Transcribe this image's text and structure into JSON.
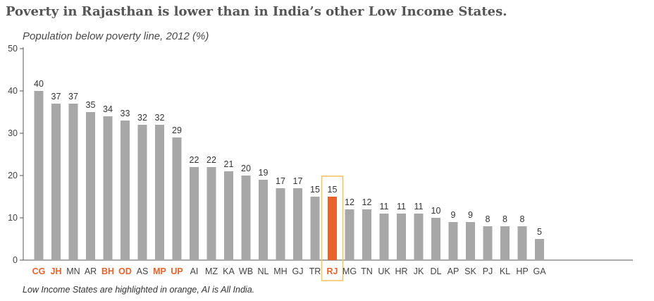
{
  "title": "Poverty in Rajasthan is lower than in India’s other Low Income States.",
  "footnote": "Low Income States are highlighted in orange, AI is All India.",
  "chart_data": {
    "type": "bar",
    "title": "Poverty in Rajasthan is lower than in India’s other Low Income States.",
    "ylabel": "Population below poverty line, 2012 (%)",
    "xlabel": "",
    "ylim": [
      0,
      50
    ],
    "yticks": [
      0,
      10,
      20,
      30,
      40,
      50
    ],
    "categories": [
      "CG",
      "JH",
      "MN",
      "AR",
      "BH",
      "OD",
      "AS",
      "MP",
      "UP",
      "AI",
      "MZ",
      "KA",
      "WB",
      "NL",
      "MH",
      "GJ",
      "TR",
      "RJ",
      "MG",
      "TN",
      "UK",
      "HR",
      "JK",
      "DL",
      "AP",
      "SK",
      "PJ",
      "KL",
      "HP",
      "GA"
    ],
    "values": [
      40,
      37,
      37,
      35,
      34,
      33,
      32,
      32,
      29,
      22,
      22,
      21,
      20,
      19,
      17,
      17,
      15,
      15,
      12,
      12,
      11,
      11,
      11,
      10,
      9,
      9,
      8,
      8,
      8,
      5
    ],
    "highlighted_labels": [
      "CG",
      "JH",
      "BH",
      "OD",
      "MP",
      "UP",
      "RJ"
    ],
    "highlighted_bar": "RJ",
    "grid": false,
    "colors": {
      "bar": "#a7a7a7",
      "highlight_bar": "#e9622b",
      "highlight_label": "#e9622b",
      "label": "#444444",
      "box": "#f2c45f",
      "axis": "#555555"
    }
  }
}
